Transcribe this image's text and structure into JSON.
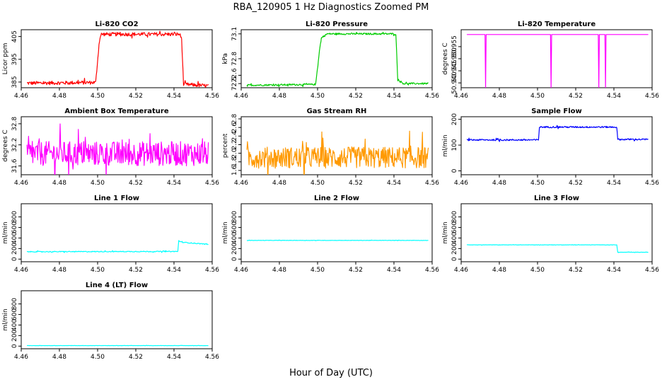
{
  "figure": {
    "title": "RBA_120905  1 Hz Diagnostics Zoomed PM",
    "xlabel": "Hour of Day (UTC)"
  },
  "chart_data": [
    {
      "id": "li820-co2",
      "type": "line",
      "title": "Li-820 CO2",
      "ylabel": "Licor ppm",
      "color": "#ff0000",
      "xlim": [
        4.46,
        4.56
      ],
      "ylim": [
        382.5,
        408
      ],
      "xticks": [
        "4.46",
        "4.48",
        "4.50",
        "4.52",
        "4.54",
        "4.56"
      ],
      "yticks": [
        "385",
        "395",
        "405"
      ],
      "ytick_values": [
        385,
        395,
        405
      ],
      "series": [
        {
          "name": "CO2",
          "points": [
            [
              4.463,
              384.5
            ],
            [
              4.499,
              384.8
            ],
            [
              4.501,
              404
            ],
            [
              4.502,
              406
            ],
            [
              4.543,
              406
            ],
            [
              4.544,
              404
            ],
            [
              4.545,
              384
            ],
            [
              4.558,
              383.3
            ]
          ],
          "noise": 0.8
        }
      ]
    },
    {
      "id": "li820-pressure",
      "type": "line",
      "title": "Li-820 Pressure",
      "ylabel": "kPa",
      "color": "#00cc00",
      "xlim": [
        4.46,
        4.56
      ],
      "ylim": [
        72.45,
        73.15
      ],
      "xticks": [
        "4.46",
        "4.48",
        "4.50",
        "4.52",
        "4.54",
        "4.56"
      ],
      "yticks": [
        "72.5",
        "72.6",
        "72.8",
        "73.1"
      ],
      "ytick_values": [
        72.5,
        72.6,
        72.8,
        73.1
      ],
      "series": [
        {
          "name": "Pressure",
          "points": [
            [
              4.463,
              72.48
            ],
            [
              4.499,
              72.49
            ],
            [
              4.501,
              72.9
            ],
            [
              4.502,
              73.05
            ],
            [
              4.505,
              73.1
            ],
            [
              4.541,
              73.1
            ],
            [
              4.542,
              72.55
            ],
            [
              4.545,
              72.5
            ],
            [
              4.558,
              72.5
            ]
          ],
          "noise": 0.01
        }
      ]
    },
    {
      "id": "li820-temperature",
      "type": "line",
      "title": "Li-820 Temperature",
      "ylabel": "degrees C",
      "color": "#ff00ff",
      "xlim": [
        4.46,
        4.56
      ],
      "ylim": [
        50.938,
        50.962
      ],
      "xticks": [
        "4.46",
        "4.48",
        "4.50",
        "4.52",
        "4.54",
        "4.56"
      ],
      "yticks": [
        "50.940",
        "50.945",
        "50.950",
        "50.955"
      ],
      "ytick_values": [
        50.94,
        50.945,
        50.95,
        50.955
      ],
      "series": [
        {
          "name": "Temperature",
          "points": [
            [
              4.463,
              50.96
            ],
            [
              4.4725,
              50.96
            ],
            [
              4.4728,
              50.938
            ],
            [
              4.4731,
              50.96
            ],
            [
              4.5068,
              50.96
            ],
            [
              4.5071,
              50.938
            ],
            [
              4.5074,
              50.96
            ],
            [
              4.5318,
              50.96
            ],
            [
              4.5321,
              50.938
            ],
            [
              4.5324,
              50.96
            ],
            [
              4.5353,
              50.96
            ],
            [
              4.5356,
              50.938
            ],
            [
              4.5359,
              50.96
            ],
            [
              4.558,
              50.96
            ]
          ],
          "noise": 0
        }
      ]
    },
    {
      "id": "ambient-box-temperature",
      "type": "line",
      "title": "Ambient Box Temperature",
      "ylabel": "degrees C",
      "color": "#ff00ff",
      "xlim": [
        4.46,
        4.56
      ],
      "ylim": [
        31.35,
        33.0
      ],
      "xticks": [
        "4.46",
        "4.48",
        "4.50",
        "4.52",
        "4.54",
        "4.56"
      ],
      "yticks": [
        "31.6",
        "32.2",
        "32.8"
      ],
      "ytick_values": [
        31.6,
        32.2,
        32.8
      ],
      "series": [
        {
          "name": "Ambient",
          "points": [
            [
              4.463,
              31.95
            ],
            [
              4.558,
              31.95
            ]
          ],
          "noise": 0.35
        }
      ]
    },
    {
      "id": "gas-stream-rh",
      "type": "line",
      "title": "Gas Stream RH",
      "ylabel": "percent",
      "color": "#ff9900",
      "xlim": [
        4.46,
        4.56
      ],
      "ylim": [
        1.5,
        2.85
      ],
      "xticks": [
        "4.46",
        "4.48",
        "4.50",
        "4.52",
        "4.54",
        "4.56"
      ],
      "yticks": [
        "1.6",
        "1.8",
        "2.0",
        "2.2",
        "2.4",
        "2.6",
        "2.8"
      ],
      "ytick_values": [
        1.6,
        1.8,
        2.0,
        2.2,
        2.4,
        2.6,
        2.8
      ],
      "series": [
        {
          "name": "RH",
          "points": [
            [
              4.463,
              1.9
            ],
            [
              4.558,
              1.9
            ]
          ],
          "noise": 0.25
        }
      ]
    },
    {
      "id": "sample-flow",
      "type": "line",
      "title": "Sample Flow",
      "ylabel": "ml/min",
      "color": "#0000ff",
      "xlim": [
        4.46,
        4.56
      ],
      "ylim": [
        -15,
        210
      ],
      "xticks": [
        "4.46",
        "4.48",
        "4.50",
        "4.52",
        "4.54",
        "4.56"
      ],
      "yticks": [
        "0",
        "100",
        "200"
      ],
      "ytick_values": [
        0,
        100,
        200
      ],
      "series": [
        {
          "name": "Sample Flow",
          "points": [
            [
              4.463,
              120
            ],
            [
              4.5005,
              120
            ],
            [
              4.501,
              170
            ],
            [
              4.5415,
              170
            ],
            [
              4.542,
              122
            ],
            [
              4.558,
              122
            ]
          ],
          "noise": 3
        }
      ]
    },
    {
      "id": "line-1-flow",
      "type": "line",
      "title": "Line 1 Flow",
      "ylabel": "ml/min",
      "color": "#00ffff",
      "xlim": [
        4.46,
        4.56
      ],
      "ylim": [
        -50,
        1050
      ],
      "xticks": [
        "4.46",
        "4.48",
        "4.50",
        "4.52",
        "4.54",
        "4.56"
      ],
      "yticks": [
        "0",
        "200",
        "400",
        "600",
        "800"
      ],
      "ytick_values": [
        0,
        200,
        400,
        600,
        800
      ],
      "series": [
        {
          "name": "Line 1",
          "points": [
            [
              4.463,
              140
            ],
            [
              4.542,
              145
            ],
            [
              4.5425,
              350
            ],
            [
              4.544,
              320
            ],
            [
              4.558,
              280
            ]
          ],
          "noise": 8
        }
      ]
    },
    {
      "id": "line-2-flow",
      "type": "line",
      "title": "Line 2 Flow",
      "ylabel": "ml/min",
      "color": "#00ffff",
      "xlim": [
        4.46,
        4.56
      ],
      "ylim": [
        -50,
        1050
      ],
      "xticks": [
        "4.46",
        "4.48",
        "4.50",
        "4.52",
        "4.54",
        "4.56"
      ],
      "yticks": [
        "0",
        "200",
        "400",
        "600",
        "800"
      ],
      "ytick_values": [
        0,
        200,
        400,
        600,
        800
      ],
      "series": [
        {
          "name": "Line 2",
          "points": [
            [
              4.463,
              355
            ],
            [
              4.558,
              355
            ]
          ],
          "noise": 3
        }
      ]
    },
    {
      "id": "line-3-flow",
      "type": "line",
      "title": "Line 3 Flow",
      "ylabel": "ml/min",
      "color": "#00ffff",
      "xlim": [
        4.46,
        4.56
      ],
      "ylim": [
        -50,
        1050
      ],
      "xticks": [
        "4.46",
        "4.48",
        "4.50",
        "4.52",
        "4.54",
        "4.56"
      ],
      "yticks": [
        "0",
        "200",
        "400",
        "600",
        "800"
      ],
      "ytick_values": [
        0,
        200,
        400,
        600,
        800
      ],
      "series": [
        {
          "name": "Line 3",
          "points": [
            [
              4.463,
              270
            ],
            [
              4.5415,
              270
            ],
            [
              4.542,
              130
            ],
            [
              4.558,
              130
            ]
          ],
          "noise": 3
        }
      ]
    },
    {
      "id": "line-4-lt-flow",
      "type": "line",
      "title": "Line 4 (LT) Flow",
      "ylabel": "ml/min",
      "color": "#00ffff",
      "xlim": [
        4.46,
        4.56
      ],
      "ylim": [
        -50,
        1050
      ],
      "xticks": [
        "4.46",
        "4.48",
        "4.50",
        "4.52",
        "4.54",
        "4.56"
      ],
      "yticks": [
        "0",
        "200",
        "400",
        "600",
        "800"
      ],
      "ytick_values": [
        0,
        200,
        400,
        600,
        800
      ],
      "series": [
        {
          "name": "Line 4",
          "points": [
            [
              4.463,
              10
            ],
            [
              4.558,
              10
            ]
          ],
          "noise": 2
        }
      ]
    }
  ]
}
